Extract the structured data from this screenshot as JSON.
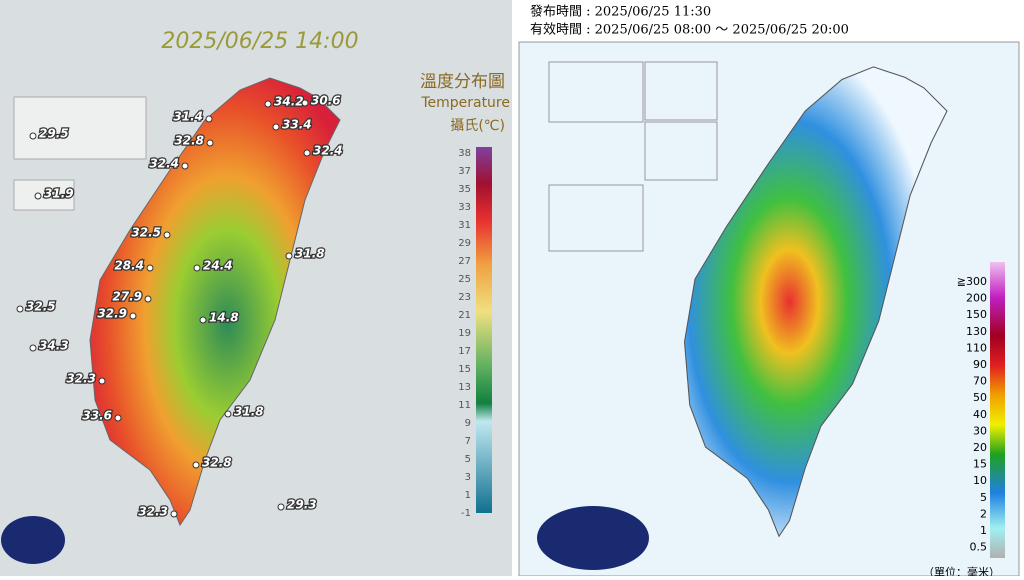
{
  "left": {
    "time": "2025/06/25 14:00",
    "legend_title": "溫度分布圖",
    "legend_subtitle": "Temperature",
    "legend_unit": "攝氏(℃)",
    "scale": [
      38,
      37,
      35,
      33,
      31,
      29,
      27,
      25,
      23,
      21,
      19,
      17,
      15,
      13,
      11,
      9,
      7,
      5,
      3,
      1,
      -1
    ],
    "stations": [
      31.4,
      34.2,
      30.6,
      33.4,
      32.8,
      32.4,
      32.4,
      32.5,
      24.4,
      31.8,
      28.4,
      27.9,
      14.8,
      32.9,
      32.3,
      33.6,
      31.8,
      32.8,
      32.3,
      29.3,
      29.5,
      31.9,
      32.5,
      34.3
    ]
  },
  "right": {
    "issued": "發布時間 : 2025/06/25 11:30",
    "valid": "有效時間 : 2025/06/25 08:00 ～ 2025/06/25 20:00",
    "scale": [
      "≧300",
      200,
      150,
      130,
      110,
      90,
      70,
      50,
      40,
      30,
      20,
      15,
      10,
      5,
      2,
      1,
      0.5
    ],
    "unit": "（單位：毫米）"
  }
}
